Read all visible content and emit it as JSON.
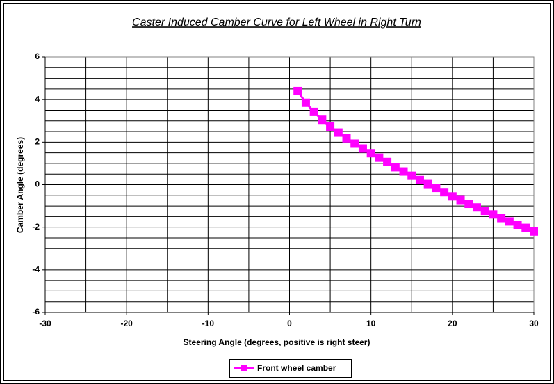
{
  "chart_data": {
    "type": "line",
    "title": "Caster Induced Camber Curve for Left Wheel in Right Turn",
    "x_label": "Steering Angle (degrees, positive is right steer)",
    "y_label": "Camber Angle (degrees)",
    "xlim": [
      -30,
      30
    ],
    "ylim": [
      -6,
      6
    ],
    "xticks": [
      -30,
      -20,
      -10,
      0,
      10,
      20,
      30
    ],
    "yticks": [
      -6,
      -4,
      -2,
      0,
      2,
      4,
      6
    ],
    "x_gridlines": [
      -25,
      -20,
      -15,
      -10,
      -5,
      0,
      5,
      10,
      15,
      20,
      25
    ],
    "y_gridlines": [
      -5.5,
      -5,
      -4.5,
      -4,
      -3.5,
      -3,
      -2.5,
      -2,
      -1.5,
      -1,
      -0.5,
      0,
      0.5,
      1,
      1.5,
      2,
      2.5,
      3,
      3.5,
      4,
      4.5,
      5,
      5.5
    ],
    "legend": "bottom",
    "series": [
      {
        "name": "Front wheel camber",
        "color": "#ff00ff",
        "x": [
          1,
          2,
          3,
          4,
          5,
          6,
          7,
          8,
          9,
          10,
          11,
          12,
          13,
          14,
          15,
          16,
          17,
          18,
          19,
          20,
          21,
          22,
          23,
          24,
          25,
          26,
          27,
          28,
          29,
          30
        ],
        "values": [
          4.4,
          3.85,
          3.42,
          3.05,
          2.73,
          2.45,
          2.18,
          1.93,
          1.7,
          1.48,
          1.27,
          1.07,
          0.82,
          0.62,
          0.42,
          0.22,
          0.03,
          -0.15,
          -0.35,
          -0.55,
          -0.72,
          -0.9,
          -1.07,
          -1.23,
          -1.4,
          -1.57,
          -1.73,
          -1.88,
          -2.03,
          -2.2
        ]
      }
    ]
  }
}
